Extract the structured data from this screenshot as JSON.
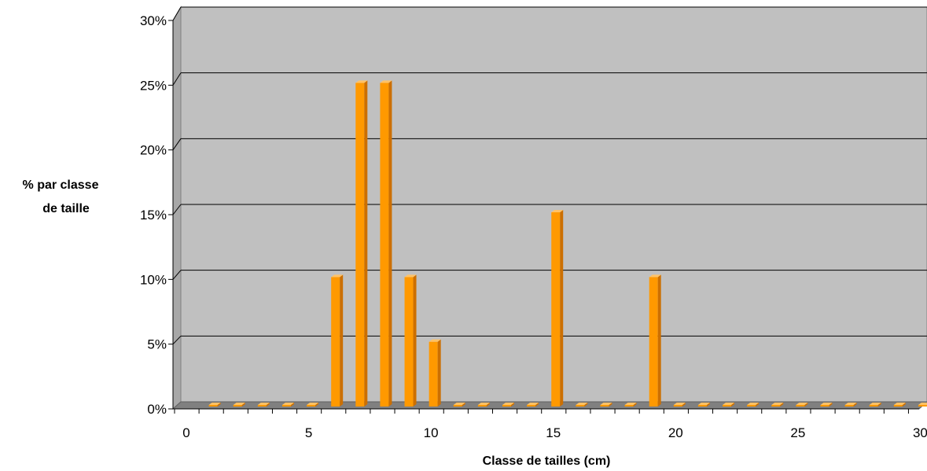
{
  "chart_data": {
    "type": "bar",
    "title": "",
    "xlabel": "Classe de tailles (cm)",
    "ylabel_lines": [
      "% par classe",
      "de taille"
    ],
    "x": [
      1,
      2,
      3,
      4,
      5,
      6,
      7,
      8,
      9,
      10,
      11,
      12,
      13,
      14,
      15,
      16,
      17,
      18,
      19,
      20,
      21,
      22,
      23,
      24,
      25,
      26,
      27,
      28,
      29,
      30
    ],
    "values": [
      0,
      0,
      0,
      0,
      0,
      10,
      25,
      25,
      10,
      5,
      0,
      0,
      0,
      0,
      15,
      0,
      0,
      0,
      10,
      0,
      0,
      0,
      0,
      0,
      0,
      0,
      0,
      0,
      0,
      0
    ],
    "xlim": [
      0,
      30
    ],
    "ylim": [
      0,
      30
    ],
    "xticks": [
      "0",
      "5",
      "10",
      "15",
      "20",
      "25",
      "30"
    ],
    "yticks": [
      "0%",
      "5%",
      "10%",
      "15%",
      "20%",
      "25%",
      "30%"
    ],
    "grid": "horizontal",
    "legend": "none",
    "colors": {
      "bar": "#ff9900",
      "bar_dark": "#cc6f00",
      "bar_top": "#ffc266",
      "plot_bg": "#c0c0c0",
      "floor": "#808080",
      "gridline": "#000000"
    }
  }
}
